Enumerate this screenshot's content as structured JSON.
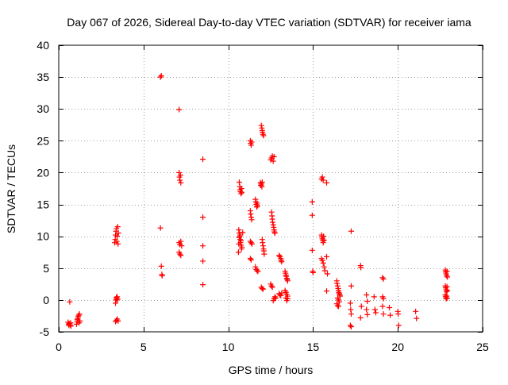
{
  "chart_data": {
    "type": "scatter",
    "title": "Day 067 of 2026, Sidereal Day-to-day VTEC variation (SDTVAR) for receiver iama",
    "xlabel": "GPS time / hours",
    "ylabel": "SDTVAR / TECUs",
    "xlim": [
      0,
      25
    ],
    "ylim": [
      -5,
      40
    ],
    "xticks": [
      0,
      5,
      10,
      15,
      20,
      25
    ],
    "yticks": [
      -5,
      0,
      5,
      10,
      15,
      20,
      25,
      30,
      35,
      40
    ],
    "grid": true,
    "marker": "+",
    "color": "#ff0000",
    "points": [
      [
        0.55,
        -3.5
      ],
      [
        0.58,
        -3.8
      ],
      [
        0.6,
        -4.0
      ],
      [
        0.62,
        -3.7
      ],
      [
        0.65,
        -0.3
      ],
      [
        0.68,
        -3.9
      ],
      [
        0.7,
        -3.6
      ],
      [
        0.72,
        -4.1
      ],
      [
        1.05,
        -3.8
      ],
      [
        1.08,
        -3.4
      ],
      [
        1.1,
        -3.1
      ],
      [
        1.12,
        -2.9
      ],
      [
        1.15,
        -2.6
      ],
      [
        1.18,
        -2.4
      ],
      [
        1.2,
        -3.6
      ],
      [
        1.22,
        -2.2
      ],
      [
        1.25,
        -3.3
      ],
      [
        3.3,
        9.0
      ],
      [
        3.33,
        9.5
      ],
      [
        3.35,
        10.2
      ],
      [
        3.38,
        10.8
      ],
      [
        3.4,
        11.2
      ],
      [
        3.42,
        9.2
      ],
      [
        3.45,
        10.0
      ],
      [
        3.48,
        11.5
      ],
      [
        3.5,
        8.8
      ],
      [
        3.52,
        10.5
      ],
      [
        3.35,
        -0.5
      ],
      [
        3.38,
        0.0
      ],
      [
        3.4,
        0.4
      ],
      [
        3.42,
        0.2
      ],
      [
        3.45,
        0.5
      ],
      [
        3.48,
        0.1
      ],
      [
        3.35,
        -3.4
      ],
      [
        3.4,
        -3.2
      ],
      [
        3.45,
        -3.0
      ],
      [
        3.5,
        -3.3
      ],
      [
        6.0,
        35.0
      ],
      [
        6.05,
        35.2
      ],
      [
        6.0,
        11.3
      ],
      [
        6.05,
        5.3
      ],
      [
        6.08,
        4.0
      ],
      [
        6.1,
        3.8
      ],
      [
        7.1,
        29.9
      ],
      [
        7.1,
        20.0
      ],
      [
        7.12,
        19.3
      ],
      [
        7.15,
        18.8
      ],
      [
        7.18,
        19.6
      ],
      [
        7.2,
        18.4
      ],
      [
        7.1,
        9.0
      ],
      [
        7.15,
        8.7
      ],
      [
        7.2,
        9.2
      ],
      [
        7.25,
        8.5
      ],
      [
        7.1,
        7.5
      ],
      [
        7.15,
        7.2
      ],
      [
        7.2,
        7.0
      ],
      [
        8.5,
        22.1
      ],
      [
        8.5,
        13.0
      ],
      [
        8.5,
        8.5
      ],
      [
        8.5,
        6.1
      ],
      [
        8.5,
        2.4
      ],
      [
        10.65,
        18.5
      ],
      [
        10.68,
        17.8
      ],
      [
        10.7,
        17.3
      ],
      [
        10.72,
        17.0
      ],
      [
        10.75,
        16.7
      ],
      [
        10.78,
        17.5
      ],
      [
        10.8,
        16.9
      ],
      [
        10.65,
        10.5
      ],
      [
        10.68,
        10.0
      ],
      [
        10.7,
        9.5
      ],
      [
        10.72,
        9.0
      ],
      [
        10.75,
        8.6
      ],
      [
        10.78,
        8.0
      ],
      [
        10.6,
        7.5
      ],
      [
        10.62,
        11.0
      ],
      [
        10.65,
        9.8
      ],
      [
        10.7,
        10.2
      ],
      [
        10.75,
        9.3
      ],
      [
        10.8,
        8.3
      ],
      [
        10.85,
        10.6
      ],
      [
        10.62,
        8.8
      ],
      [
        11.3,
        25.0
      ],
      [
        11.32,
        24.6
      ],
      [
        11.35,
        24.3
      ],
      [
        11.38,
        24.8
      ],
      [
        11.3,
        14.0
      ],
      [
        11.32,
        13.5
      ],
      [
        11.35,
        13.0
      ],
      [
        11.38,
        12.6
      ],
      [
        11.3,
        9.2
      ],
      [
        11.35,
        9.0
      ],
      [
        11.4,
        8.8
      ],
      [
        11.3,
        6.5
      ],
      [
        11.35,
        6.3
      ],
      [
        11.6,
        15.8
      ],
      [
        11.62,
        15.4
      ],
      [
        11.65,
        15.0
      ],
      [
        11.68,
        14.6
      ],
      [
        11.7,
        15.2
      ],
      [
        11.72,
        14.8
      ],
      [
        11.6,
        5.2
      ],
      [
        11.65,
        4.8
      ],
      [
        11.7,
        4.6
      ],
      [
        11.75,
        4.5
      ],
      [
        11.9,
        18.4
      ],
      [
        11.92,
        18.0
      ],
      [
        11.95,
        18.2
      ],
      [
        11.98,
        17.8
      ],
      [
        12.0,
        18.5
      ],
      [
        11.95,
        27.4
      ],
      [
        11.98,
        27.0
      ],
      [
        12.0,
        26.6
      ],
      [
        12.02,
        26.3
      ],
      [
        12.05,
        26.0
      ],
      [
        12.08,
        25.8
      ],
      [
        11.95,
        2.0
      ],
      [
        12.0,
        1.8
      ],
      [
        12.05,
        1.7
      ],
      [
        12.0,
        9.5
      ],
      [
        12.02,
        9.0
      ],
      [
        12.05,
        8.5
      ],
      [
        12.08,
        8.0
      ],
      [
        12.1,
        7.7
      ],
      [
        12.12,
        7.2
      ],
      [
        12.5,
        22.0
      ],
      [
        12.55,
        22.3
      ],
      [
        12.6,
        22.6
      ],
      [
        12.65,
        21.8
      ],
      [
        12.7,
        22.5
      ],
      [
        12.55,
        13.8
      ],
      [
        12.58,
        13.2
      ],
      [
        12.6,
        12.7
      ],
      [
        12.62,
        12.2
      ],
      [
        12.65,
        11.8
      ],
      [
        12.68,
        11.4
      ],
      [
        12.7,
        11.0
      ],
      [
        12.72,
        10.7
      ],
      [
        12.75,
        10.5
      ],
      [
        12.5,
        2.5
      ],
      [
        12.55,
        2.2
      ],
      [
        12.6,
        2.0
      ],
      [
        12.65,
        -0.1
      ],
      [
        12.7,
        0.2
      ],
      [
        12.75,
        0.5
      ],
      [
        12.8,
        0.3
      ],
      [
        13.0,
        7.0
      ],
      [
        13.05,
        6.8
      ],
      [
        13.1,
        6.5
      ],
      [
        13.12,
        6.2
      ],
      [
        13.15,
        6.0
      ],
      [
        13.0,
        1.0
      ],
      [
        13.05,
        0.8
      ],
      [
        13.1,
        0.7
      ],
      [
        13.15,
        1.1
      ],
      [
        13.35,
        4.5
      ],
      [
        13.38,
        4.2
      ],
      [
        13.4,
        3.9
      ],
      [
        13.42,
        3.7
      ],
      [
        13.45,
        3.4
      ],
      [
        13.48,
        3.2
      ],
      [
        13.5,
        3.0
      ],
      [
        13.35,
        1.5
      ],
      [
        13.4,
        1.2
      ],
      [
        13.45,
        0.9
      ],
      [
        13.5,
        0.6
      ],
      [
        13.4,
        0.3
      ],
      [
        13.45,
        -0.1
      ],
      [
        13.5,
        0.2
      ],
      [
        14.95,
        15.4
      ],
      [
        14.95,
        13.3
      ],
      [
        14.95,
        7.8
      ],
      [
        14.98,
        4.5
      ],
      [
        15.0,
        4.3
      ],
      [
        15.5,
        19.0
      ],
      [
        15.55,
        19.3
      ],
      [
        15.6,
        18.8
      ],
      [
        15.8,
        18.4
      ],
      [
        15.5,
        10.2
      ],
      [
        15.52,
        9.9
      ],
      [
        15.55,
        9.6
      ],
      [
        15.58,
        9.3
      ],
      [
        15.6,
        9.0
      ],
      [
        15.62,
        10.0
      ],
      [
        15.65,
        9.4
      ],
      [
        15.5,
        6.5
      ],
      [
        15.55,
        6.2
      ],
      [
        15.6,
        5.8
      ],
      [
        15.65,
        5.2
      ],
      [
        15.7,
        4.6
      ],
      [
        15.8,
        6.8
      ],
      [
        15.85,
        4.1
      ],
      [
        15.8,
        1.4
      ],
      [
        16.4,
        3.0
      ],
      [
        16.42,
        2.6
      ],
      [
        16.45,
        2.2
      ],
      [
        16.48,
        1.8
      ],
      [
        16.5,
        1.5
      ],
      [
        16.52,
        1.2
      ],
      [
        16.55,
        1.0
      ],
      [
        16.58,
        0.8
      ],
      [
        16.6,
        0.6
      ],
      [
        16.45,
        0.3
      ],
      [
        16.5,
        0.0
      ],
      [
        16.55,
        -0.3
      ],
      [
        16.4,
        -0.6
      ],
      [
        16.45,
        -0.9
      ],
      [
        16.5,
        -1.0
      ],
      [
        17.25,
        10.8
      ],
      [
        17.25,
        2.2
      ],
      [
        17.2,
        -0.5
      ],
      [
        17.22,
        -1.5
      ],
      [
        17.25,
        -2.2
      ],
      [
        17.2,
        -4.0
      ],
      [
        17.25,
        -4.2
      ],
      [
        17.8,
        5.4
      ],
      [
        17.82,
        5.1
      ],
      [
        17.85,
        -1.0
      ],
      [
        17.8,
        -2.8
      ],
      [
        18.15,
        0.8
      ],
      [
        18.2,
        -0.2
      ],
      [
        18.15,
        -1.5
      ],
      [
        18.2,
        -2.3
      ],
      [
        18.6,
        0.5
      ],
      [
        18.65,
        -1.5
      ],
      [
        18.7,
        -2.0
      ],
      [
        19.1,
        3.5
      ],
      [
        19.15,
        3.3
      ],
      [
        19.1,
        0.5
      ],
      [
        19.15,
        0.2
      ],
      [
        19.1,
        -1.0
      ],
      [
        19.15,
        -2.2
      ],
      [
        19.5,
        -1.2
      ],
      [
        19.55,
        -2.4
      ],
      [
        20.0,
        -1.8
      ],
      [
        20.02,
        -2.2
      ],
      [
        20.05,
        -4.0
      ],
      [
        21.05,
        -1.8
      ],
      [
        21.1,
        -2.9
      ],
      [
        22.8,
        4.7
      ],
      [
        22.82,
        4.4
      ],
      [
        22.85,
        4.1
      ],
      [
        22.88,
        3.8
      ],
      [
        22.9,
        4.5
      ],
      [
        22.92,
        3.6
      ],
      [
        22.8,
        2.2
      ],
      [
        22.82,
        1.9
      ],
      [
        22.85,
        1.6
      ],
      [
        22.88,
        1.3
      ],
      [
        22.9,
        2.1
      ],
      [
        22.92,
        1.5
      ],
      [
        22.8,
        0.8
      ],
      [
        22.82,
        0.5
      ],
      [
        22.85,
        0.2
      ],
      [
        22.88,
        0.6
      ],
      [
        22.9,
        0.3
      ]
    ]
  }
}
